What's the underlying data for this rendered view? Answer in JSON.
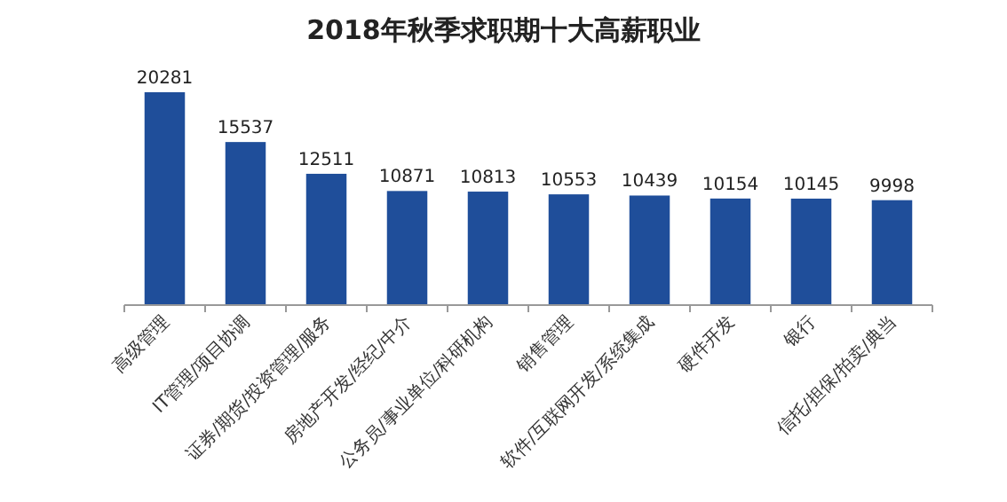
{
  "chart_data": {
    "type": "bar",
    "title": "2018年秋季求职期十大高薪职业",
    "categories": [
      "高级管理",
      "IT管理/项目协调",
      "证券/期货/投资管理/服务",
      "房地产开发/经纪/中介",
      "公务员/事业单位/科研机构",
      "销售管理",
      "软件/互联网开发/系统集成",
      "硬件开发",
      "银行",
      "信托/担保/拍卖/典当"
    ],
    "values": [
      20281,
      15537,
      12511,
      10871,
      10813,
      10553,
      10439,
      10154,
      10145,
      9998
    ],
    "color": "#1f4e9a",
    "data_labels": true
  }
}
